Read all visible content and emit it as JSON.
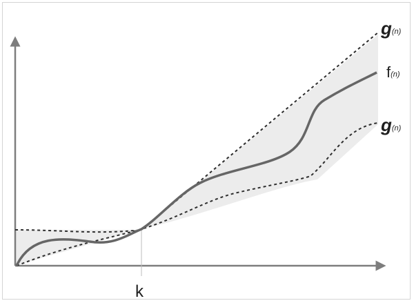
{
  "diagram": {
    "x_marker_label": "k",
    "curves": {
      "upper": {
        "main": "g",
        "sub": "(n)"
      },
      "middle": {
        "main": "f",
        "sub": "(n)"
      },
      "lower": {
        "main": "g",
        "sub": "(n)"
      }
    },
    "colors": {
      "axis": "#7d7d7d",
      "f_curve": "#666666",
      "bound_curves": "#2e2e2e",
      "band_fill": "#ececec",
      "label": "#1f1f1f"
    }
  }
}
